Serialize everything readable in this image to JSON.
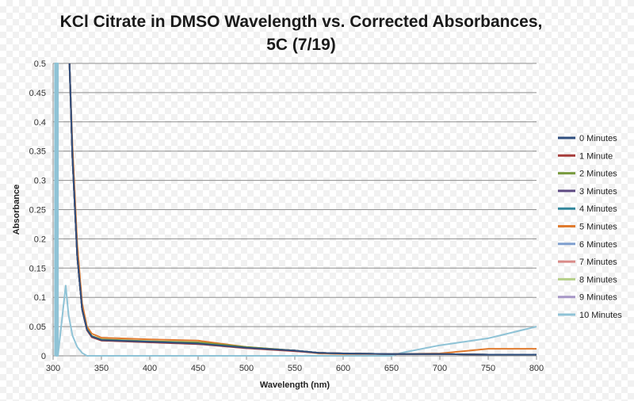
{
  "chart_data": {
    "type": "line",
    "title_line1": "KCl Citrate in DMSO Wavelength vs. Corrected Absorbances,",
    "title_line2": "5C (7/19)",
    "xlabel": "Wavelength (nm)",
    "ylabel": "Absorbance",
    "xlim": [
      300,
      800
    ],
    "ylim": [
      0,
      0.5
    ],
    "xticks": [
      "300",
      "350",
      "400",
      "450",
      "500",
      "550",
      "600",
      "650",
      "700",
      "750",
      "800"
    ],
    "yticks": [
      "0",
      "0.05",
      "0.1",
      "0.15",
      "0.2",
      "0.25",
      "0.3",
      "0.35",
      "0.4",
      "0.45",
      "0.5"
    ],
    "grid": "horizontal",
    "legend_position": "right",
    "series": [
      {
        "name": "0 Minutes",
        "color": "#2F4E7E",
        "x": [
          317,
          320,
          325,
          330,
          335,
          340,
          350,
          400,
          450,
          500,
          550,
          575,
          600,
          650,
          700,
          750,
          800
        ],
        "y": [
          0.5,
          0.34,
          0.17,
          0.08,
          0.045,
          0.033,
          0.027,
          0.024,
          0.021,
          0.014,
          0.009,
          0.005,
          0.004,
          0.003,
          0.003,
          0.002,
          0.002
        ]
      },
      {
        "name": "1 Minute",
        "color": "#A63C3A",
        "x": [
          317,
          320,
          325,
          330,
          335,
          340,
          350,
          400,
          450,
          500,
          550,
          575,
          600,
          650,
          700,
          750,
          800
        ],
        "y": [
          0.5,
          0.34,
          0.17,
          0.08,
          0.044,
          0.032,
          0.026,
          0.023,
          0.02,
          0.013,
          0.008,
          0.005,
          0.004,
          0.003,
          0.003,
          0.002,
          0.002
        ]
      },
      {
        "name": "2 Minutes",
        "color": "#789A3E",
        "x": [
          317,
          320,
          325,
          330,
          335,
          340,
          350,
          400,
          450,
          500,
          550,
          575,
          600,
          650,
          700,
          750,
          800
        ],
        "y": [
          0.5,
          0.34,
          0.17,
          0.08,
          0.046,
          0.034,
          0.028,
          0.025,
          0.023,
          0.015,
          0.009,
          0.005,
          0.004,
          0.003,
          0.003,
          0.002,
          0.002
        ]
      },
      {
        "name": "3 Minutes",
        "color": "#5E4A82",
        "x": [
          317,
          320,
          325,
          330,
          335,
          340,
          350,
          400,
          450,
          500,
          550,
          575,
          600,
          650,
          700,
          750,
          800
        ],
        "y": [
          0.5,
          0.34,
          0.17,
          0.08,
          0.045,
          0.033,
          0.027,
          0.024,
          0.021,
          0.014,
          0.009,
          0.005,
          0.004,
          0.003,
          0.003,
          0.002,
          0.002
        ]
      },
      {
        "name": "4 Minutes",
        "color": "#31869B",
        "x": [
          317,
          320,
          325,
          330,
          335,
          340,
          350,
          400,
          450,
          500,
          550,
          575,
          600,
          650,
          700,
          750,
          800
        ],
        "y": [
          0.5,
          0.34,
          0.17,
          0.08,
          0.045,
          0.033,
          0.027,
          0.024,
          0.022,
          0.014,
          0.009,
          0.005,
          0.004,
          0.003,
          0.003,
          0.002,
          0.002
        ]
      },
      {
        "name": "5 Minutes",
        "color": "#E07B2F",
        "x": [
          317,
          320,
          325,
          330,
          335,
          340,
          350,
          400,
          450,
          500,
          550,
          575,
          600,
          650,
          700,
          750,
          800
        ],
        "y": [
          0.5,
          0.36,
          0.19,
          0.09,
          0.05,
          0.038,
          0.031,
          0.028,
          0.026,
          0.015,
          0.009,
          0.004,
          0.003,
          0.003,
          0.004,
          0.012,
          0.012
        ]
      },
      {
        "name": "6 Minutes",
        "color": "#7F9FCF",
        "x": [
          317,
          320,
          325,
          330,
          335,
          340,
          350,
          400,
          450,
          500,
          550,
          575,
          600,
          650,
          700,
          750,
          800
        ],
        "y": [
          0.5,
          0.34,
          0.17,
          0.08,
          0.045,
          0.033,
          0.027,
          0.024,
          0.021,
          0.014,
          0.009,
          0.005,
          0.004,
          0.003,
          0.003,
          0.002,
          0.002
        ]
      },
      {
        "name": "7 Minutes",
        "color": "#D98B88",
        "x": [
          317,
          320,
          325,
          330,
          335,
          340,
          350,
          400,
          450,
          500,
          550,
          575,
          600,
          650,
          700,
          750,
          800
        ],
        "y": [
          0.5,
          0.34,
          0.17,
          0.08,
          0.045,
          0.033,
          0.027,
          0.024,
          0.021,
          0.014,
          0.009,
          0.005,
          0.004,
          0.003,
          0.003,
          0.002,
          0.002
        ]
      },
      {
        "name": "8 Minutes",
        "color": "#B5CF88",
        "x": [
          317,
          320,
          325,
          330,
          335,
          340,
          350,
          400,
          450,
          500,
          550,
          575,
          600,
          650,
          700,
          750,
          800
        ],
        "y": [
          0.5,
          0.34,
          0.17,
          0.08,
          0.045,
          0.033,
          0.027,
          0.024,
          0.021,
          0.014,
          0.009,
          0.005,
          0.004,
          0.003,
          0.003,
          0.002,
          0.002
        ]
      },
      {
        "name": "9 Minutes",
        "color": "#A696C6",
        "x": [
          317,
          320,
          325,
          330,
          335,
          340,
          350,
          400,
          450,
          500,
          550,
          575,
          600,
          650,
          700,
          750,
          800
        ],
        "y": [
          0.5,
          0.34,
          0.17,
          0.08,
          0.045,
          0.033,
          0.027,
          0.024,
          0.021,
          0.014,
          0.009,
          0.005,
          0.004,
          0.003,
          0.003,
          0.002,
          0.002
        ]
      },
      {
        "name": "10 Minutes",
        "color": "#8FC3D6",
        "x": [
          302,
          302,
          303,
          303,
          304,
          304,
          305,
          305,
          313,
          316,
          320,
          325,
          330,
          335,
          340,
          350,
          400,
          450,
          500,
          550,
          580,
          600,
          650,
          660,
          700,
          750,
          800
        ],
        "y": [
          0,
          0.5,
          0.5,
          0,
          0,
          0.5,
          0.5,
          0,
          0.12,
          0.07,
          0.035,
          0.015,
          0.005,
          0.0,
          0.0,
          0.0,
          0.0,
          0.0,
          0.0,
          0.0,
          0.0,
          0.0,
          0.0,
          0.005,
          0.018,
          0.03,
          0.05
        ]
      }
    ]
  }
}
